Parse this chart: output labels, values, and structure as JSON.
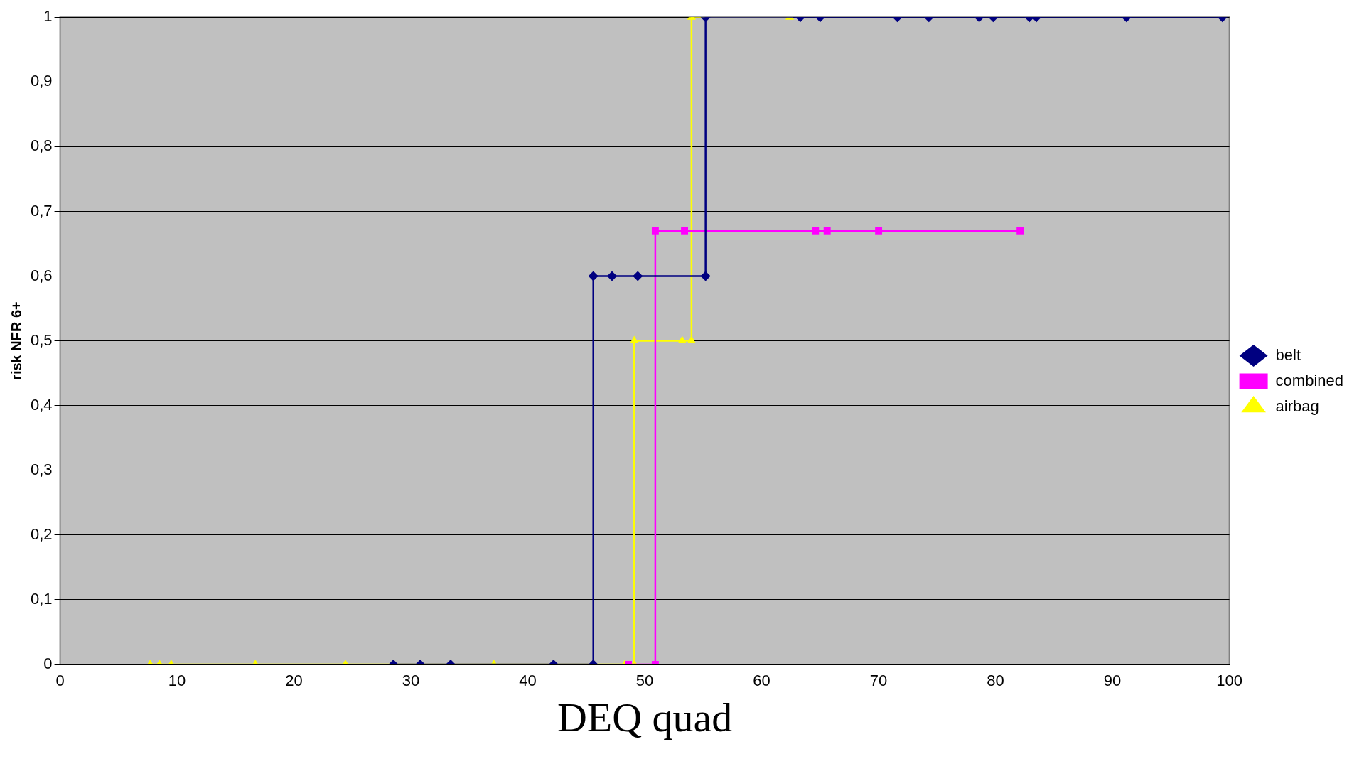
{
  "chart_data": {
    "type": "line",
    "xlabel": "DEQ quad",
    "ylabel": "risk NFR 6+",
    "xlim": [
      0,
      100
    ],
    "xticks": [
      0,
      10,
      20,
      30,
      40,
      50,
      60,
      70,
      80,
      90,
      100
    ],
    "ylim": [
      0,
      1
    ],
    "yticks": [
      0,
      {
        "value": 0.1,
        "label": "0,1"
      },
      {
        "value": 0.2,
        "label": "0,2"
      },
      {
        "value": 0.3,
        "label": "0,3"
      },
      {
        "value": 0.4,
        "label": "0,4"
      },
      {
        "value": 0.5,
        "label": "0,5"
      },
      {
        "value": 0.6,
        "label": "0,6"
      },
      {
        "value": 0.7,
        "label": "0,7"
      },
      {
        "value": 0.8,
        "label": "0,8"
      },
      {
        "value": 0.9,
        "label": "0,9"
      },
      1
    ],
    "grid": "y",
    "legend": "right",
    "series": [
      {
        "name": "belt",
        "color": "#000080",
        "marker": "diamond",
        "x": [
          28.5,
          30.8,
          33.4,
          42.2,
          45.6,
          45.6,
          47.2,
          49.4,
          55.2,
          55.2,
          63.3,
          65.0,
          71.6,
          74.3,
          78.6,
          79.8,
          82.9,
          83.5,
          91.2,
          99.4
        ],
        "values": [
          0,
          0,
          0,
          0,
          0,
          0.6,
          0.6,
          0.6,
          0.6,
          1,
          1,
          1,
          1,
          1,
          1,
          1,
          1,
          1,
          1,
          1
        ]
      },
      {
        "name": "combined",
        "color": "#ff00ff",
        "marker": "square",
        "x": [
          48.6,
          50.9,
          50.9,
          53.4,
          64.6,
          65.6,
          70.0,
          82.1
        ],
        "values": [
          0,
          0,
          0.67,
          0.67,
          0.67,
          0.67,
          0.67,
          0.67
        ]
      },
      {
        "name": "airbag",
        "color": "#ffff00",
        "marker": "triangle",
        "x": [
          7.7,
          8.5,
          9.5,
          16.7,
          24.4,
          37.1,
          48.3,
          49.1,
          49.1,
          53.2,
          54.0,
          54.0,
          62.4
        ],
        "values": [
          0,
          0,
          0,
          0,
          0,
          0,
          0,
          0,
          0.5,
          0.5,
          0.5,
          1,
          1
        ]
      }
    ]
  }
}
